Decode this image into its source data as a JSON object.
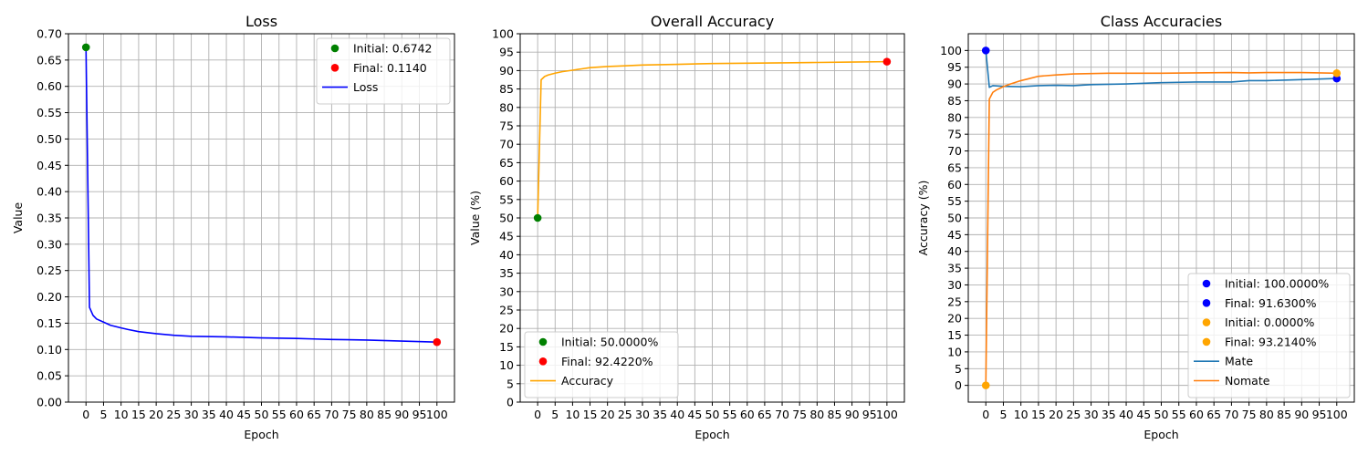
{
  "chart_data": [
    {
      "type": "line",
      "title": "Loss",
      "xlabel": "Epoch",
      "ylabel": "Value",
      "xlim": [
        -5,
        105
      ],
      "ylim": [
        0,
        0.7
      ],
      "xticks": [
        0,
        5,
        10,
        15,
        20,
        25,
        30,
        35,
        40,
        45,
        50,
        55,
        60,
        65,
        70,
        75,
        80,
        85,
        90,
        95,
        100
      ],
      "yticks": [
        0,
        0.05,
        0.1,
        0.15,
        0.2,
        0.25,
        0.3,
        0.35,
        0.4,
        0.45,
        0.5,
        0.55,
        0.6,
        0.65,
        0.7
      ],
      "ytick_decimals": 2,
      "grid": true,
      "legend_position": "top-right",
      "series": [
        {
          "name": "Loss",
          "color": "#0000ff",
          "x": [
            0,
            1,
            2,
            3,
            5,
            7,
            10,
            12,
            15,
            20,
            25,
            30,
            40,
            50,
            60,
            65,
            70,
            80,
            90,
            100
          ],
          "y": [
            0.6742,
            0.18,
            0.165,
            0.158,
            0.152,
            0.146,
            0.141,
            0.138,
            0.134,
            0.13,
            0.127,
            0.125,
            0.124,
            0.122,
            0.121,
            0.12,
            0.119,
            0.118,
            0.116,
            0.114
          ]
        }
      ],
      "markers": [
        {
          "label": "Initial: 0.6742",
          "x": 0,
          "y": 0.6742,
          "color": "#008000"
        },
        {
          "label": "Final: 0.1140",
          "x": 100,
          "y": 0.114,
          "color": "#ff0000"
        }
      ]
    },
    {
      "type": "line",
      "title": "Overall Accuracy",
      "xlabel": "Epoch",
      "ylabel": "Value (%)",
      "xlim": [
        -5,
        105
      ],
      "ylim": [
        0,
        100
      ],
      "xticks": [
        0,
        5,
        10,
        15,
        20,
        25,
        30,
        35,
        40,
        45,
        50,
        55,
        60,
        65,
        70,
        75,
        80,
        85,
        90,
        95,
        100
      ],
      "yticks": [
        0,
        5,
        10,
        15,
        20,
        25,
        30,
        35,
        40,
        45,
        50,
        55,
        60,
        65,
        70,
        75,
        80,
        85,
        90,
        95,
        100
      ],
      "ytick_decimals": 0,
      "grid": true,
      "legend_position": "bottom-left",
      "series": [
        {
          "name": "Accuracy",
          "color": "#ffa500",
          "x": [
            0,
            1,
            2,
            3,
            5,
            7,
            10,
            15,
            20,
            25,
            30,
            40,
            50,
            60,
            70,
            80,
            90,
            100
          ],
          "y": [
            50.0,
            87.5,
            88.4,
            88.8,
            89.3,
            89.7,
            90.1,
            90.8,
            91.1,
            91.3,
            91.5,
            91.7,
            91.9,
            92.0,
            92.1,
            92.2,
            92.3,
            92.422
          ]
        }
      ],
      "markers": [
        {
          "label": "Initial: 50.0000%",
          "x": 0,
          "y": 50.0,
          "color": "#008000"
        },
        {
          "label": "Final: 92.4220%",
          "x": 100,
          "y": 92.422,
          "color": "#ff0000"
        }
      ]
    },
    {
      "type": "line",
      "title": "Class Accuracies",
      "xlabel": "Epoch",
      "ylabel": "Accuracy (%)",
      "xlim": [
        -5,
        105
      ],
      "ylim": [
        -5,
        105
      ],
      "xticks": [
        0,
        5,
        10,
        15,
        20,
        25,
        30,
        35,
        40,
        45,
        50,
        55,
        60,
        65,
        70,
        75,
        80,
        85,
        90,
        95,
        100
      ],
      "yticks": [
        0,
        5,
        10,
        15,
        20,
        25,
        30,
        35,
        40,
        45,
        50,
        55,
        60,
        65,
        70,
        75,
        80,
        85,
        90,
        95,
        100
      ],
      "ytick_decimals": 0,
      "grid": true,
      "legend_position": "bottom-right",
      "series": [
        {
          "name": "Mate",
          "color": "#1f77b4",
          "x": [
            0,
            1,
            2,
            5,
            10,
            15,
            20,
            25,
            30,
            40,
            50,
            60,
            70,
            75,
            80,
            90,
            100
          ],
          "y": [
            100.0,
            89.0,
            89.5,
            89.3,
            89.2,
            89.5,
            89.6,
            89.5,
            89.8,
            90.0,
            90.4,
            90.6,
            90.6,
            91.0,
            91.0,
            91.3,
            91.63
          ]
        },
        {
          "name": "Nomate",
          "color": "#ff7f0e",
          "x": [
            0,
            1,
            2,
            3,
            5,
            7,
            10,
            12,
            15,
            20,
            25,
            30,
            35,
            40,
            50,
            60,
            70,
            75,
            80,
            90,
            100
          ],
          "y": [
            0.0,
            85.5,
            87.5,
            88.2,
            89.2,
            90.0,
            91.0,
            91.5,
            92.3,
            92.7,
            93.0,
            93.1,
            93.2,
            93.2,
            93.2,
            93.3,
            93.4,
            93.3,
            93.4,
            93.4,
            93.214
          ]
        }
      ],
      "markers": [
        {
          "label": "Initial: 100.0000%",
          "x": 0,
          "y": 100.0,
          "color": "#0000ff"
        },
        {
          "label": "Final: 91.6300%",
          "x": 100,
          "y": 91.63,
          "color": "#0000ff"
        },
        {
          "label": "Initial: 0.0000%",
          "x": 0,
          "y": 0.0,
          "color": "#ffa500"
        },
        {
          "label": "Final: 93.2140%",
          "x": 100,
          "y": 93.214,
          "color": "#ffa500"
        }
      ]
    }
  ]
}
